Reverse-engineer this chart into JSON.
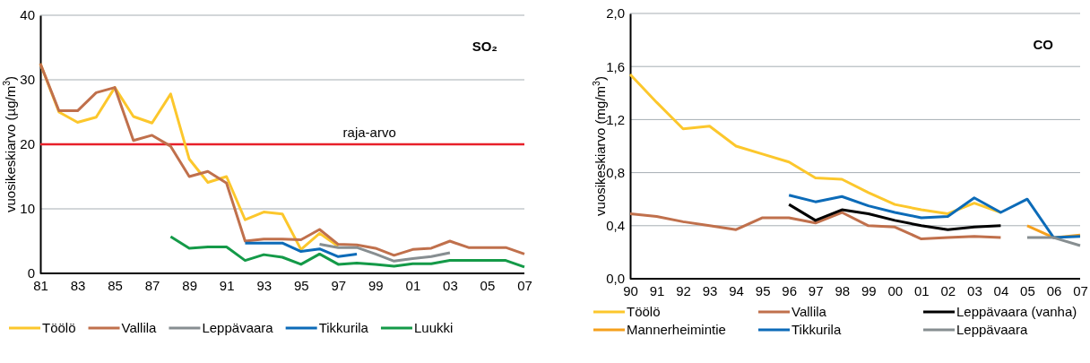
{
  "chart_data": [
    {
      "type": "line",
      "ylabel": "vuosikeskiarvo (µg/m$^{3}$)",
      "annotations": [
        "SO₂"
      ],
      "categories": [
        "81",
        null,
        "83",
        null,
        "85",
        null,
        "87",
        null,
        "89",
        null,
        "91",
        null,
        "93",
        null,
        "95",
        null,
        "97",
        null,
        "99",
        null,
        "01",
        null,
        "03",
        null,
        "05",
        null,
        "07"
      ],
      "series": [
        {
          "name": "Töölö",
          "color": "#fcc72c",
          "values": [
            32.5,
            25,
            23.4,
            24.2,
            28.8,
            24.3,
            23.3,
            27.8,
            17.7,
            14.1,
            15.0,
            8.3,
            9.5,
            9.2,
            3.7,
            6.2,
            4.2,
            null,
            null,
            null,
            null,
            null,
            null,
            null,
            null,
            null,
            null
          ]
        },
        {
          "name": "Vallila",
          "color": "#c0704c",
          "values": [
            32.5,
            25.2,
            25.2,
            28.0,
            28.8,
            20.6,
            21.4,
            19.7,
            15.0,
            15.8,
            14.0,
            5.0,
            5.3,
            5.3,
            5.2,
            6.8,
            4.5,
            4.4,
            3.9,
            2.8,
            3.7,
            3.9,
            5.0,
            4.0,
            4.0,
            4.0,
            3.0
          ]
        },
        {
          "name": "Leppävaara",
          "color": "#878e91",
          "values": [
            null,
            null,
            null,
            null,
            null,
            null,
            null,
            null,
            null,
            null,
            null,
            null,
            null,
            null,
            null,
            4.5,
            4.0,
            4.0,
            3.0,
            1.9,
            2.3,
            2.6,
            3.2,
            null,
            null,
            null,
            null
          ]
        },
        {
          "name": "Tikkurila",
          "color": "#0c6bb8",
          "values": [
            null,
            null,
            null,
            null,
            null,
            null,
            null,
            null,
            null,
            null,
            null,
            4.7,
            4.7,
            4.7,
            3.4,
            3.8,
            2.6,
            3.0,
            null,
            null,
            null,
            null,
            null,
            null,
            null,
            null,
            null
          ]
        },
        {
          "name": "Luukki",
          "color": "#149a48",
          "values": [
            null,
            null,
            null,
            null,
            null,
            null,
            null,
            5.7,
            3.9,
            4.1,
            4.1,
            2.0,
            2.9,
            2.5,
            1.4,
            3.0,
            1.4,
            1.6,
            1.4,
            1.1,
            1.5,
            1.5,
            2.0,
            2.0,
            2.0,
            2.0,
            1.0
          ]
        }
      ],
      "ylim": [
        0,
        40
      ],
      "yticks": [
        0,
        10,
        20,
        30,
        40
      ],
      "grid": "y",
      "legend": "bottom",
      "ref_lines": [
        {
          "axis": "y",
          "value": 20,
          "label": "raja-arvo",
          "color": "#e8202a"
        }
      ]
    },
    {
      "type": "line",
      "ylabel": "vuosikeskiarvo (mg/m$^{3}$)",
      "annotations": [
        "CO"
      ],
      "categories": [
        "90",
        "91",
        "92",
        "93",
        "94",
        "95",
        "96",
        "97",
        "98",
        "99",
        "00",
        "01",
        "02",
        "03",
        "04",
        "05",
        "06",
        "07"
      ],
      "series": [
        {
          "name": "Töölö",
          "color": "#fcc72c",
          "values": [
            1.54,
            1.33,
            1.13,
            1.15,
            1.0,
            0.94,
            0.88,
            0.76,
            0.75,
            0.65,
            0.56,
            0.52,
            0.49,
            0.57,
            0.5,
            null,
            null,
            null
          ]
        },
        {
          "name": "Vallila",
          "color": "#c0704c",
          "values": [
            0.49,
            0.47,
            0.43,
            0.4,
            0.37,
            0.46,
            0.46,
            0.42,
            0.5,
            0.4,
            0.39,
            0.3,
            0.31,
            0.32,
            0.31,
            null,
            null,
            null
          ]
        },
        {
          "name": "Leppävaara (vanha)",
          "color": "#000000",
          "values": [
            null,
            null,
            null,
            null,
            null,
            null,
            0.56,
            0.44,
            0.52,
            0.49,
            0.44,
            0.4,
            0.37,
            0.39,
            0.4,
            null,
            null,
            null
          ]
        },
        {
          "name": "Mannerheimintie",
          "color": "#f5a01c",
          "values": [
            null,
            null,
            null,
            null,
            null,
            null,
            null,
            null,
            null,
            null,
            null,
            null,
            null,
            null,
            null,
            0.4,
            0.31,
            0.33
          ]
        },
        {
          "name": "Tikkurila",
          "color": "#0c6bb8",
          "values": [
            null,
            null,
            null,
            null,
            null,
            null,
            0.63,
            0.58,
            0.62,
            0.55,
            0.5,
            0.46,
            0.47,
            0.61,
            0.5,
            0.6,
            0.31,
            0.32
          ]
        },
        {
          "name": "Leppävaara",
          "color": "#878e91",
          "values": [
            null,
            null,
            null,
            null,
            null,
            null,
            null,
            null,
            null,
            null,
            null,
            null,
            null,
            null,
            null,
            0.31,
            0.31,
            0.25
          ]
        }
      ],
      "ylim": [
        0,
        2
      ],
      "yticks": [
        {
          "value": 0,
          "label": "0,0"
        },
        {
          "value": 0.4,
          "label": "0,4"
        },
        {
          "value": 0.8,
          "label": "0,8"
        },
        {
          "value": 1.2,
          "label": "1,2"
        },
        {
          "value": 1.6,
          "label": "1,6"
        },
        {
          "value": 2,
          "label": "2,0"
        }
      ],
      "grid": "y",
      "legend": "bottom"
    }
  ]
}
